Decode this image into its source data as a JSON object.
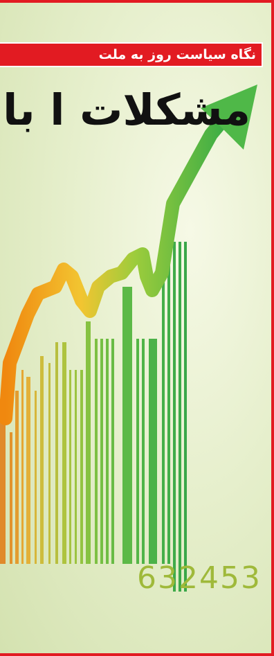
{
  "tag": "نگاه سیاست روز به ملت",
  "headline": "مشکلات ا با",
  "barcode_digits": "632453",
  "colors": {
    "frame": "#e21b22",
    "arrow_start": "#f29a1c",
    "arrow_mid": "#e9d23a",
    "arrow_end": "#4fb848",
    "background": "#e6efcc"
  },
  "icons": [
    "growth-arrow-icon",
    "barcode-icon"
  ]
}
